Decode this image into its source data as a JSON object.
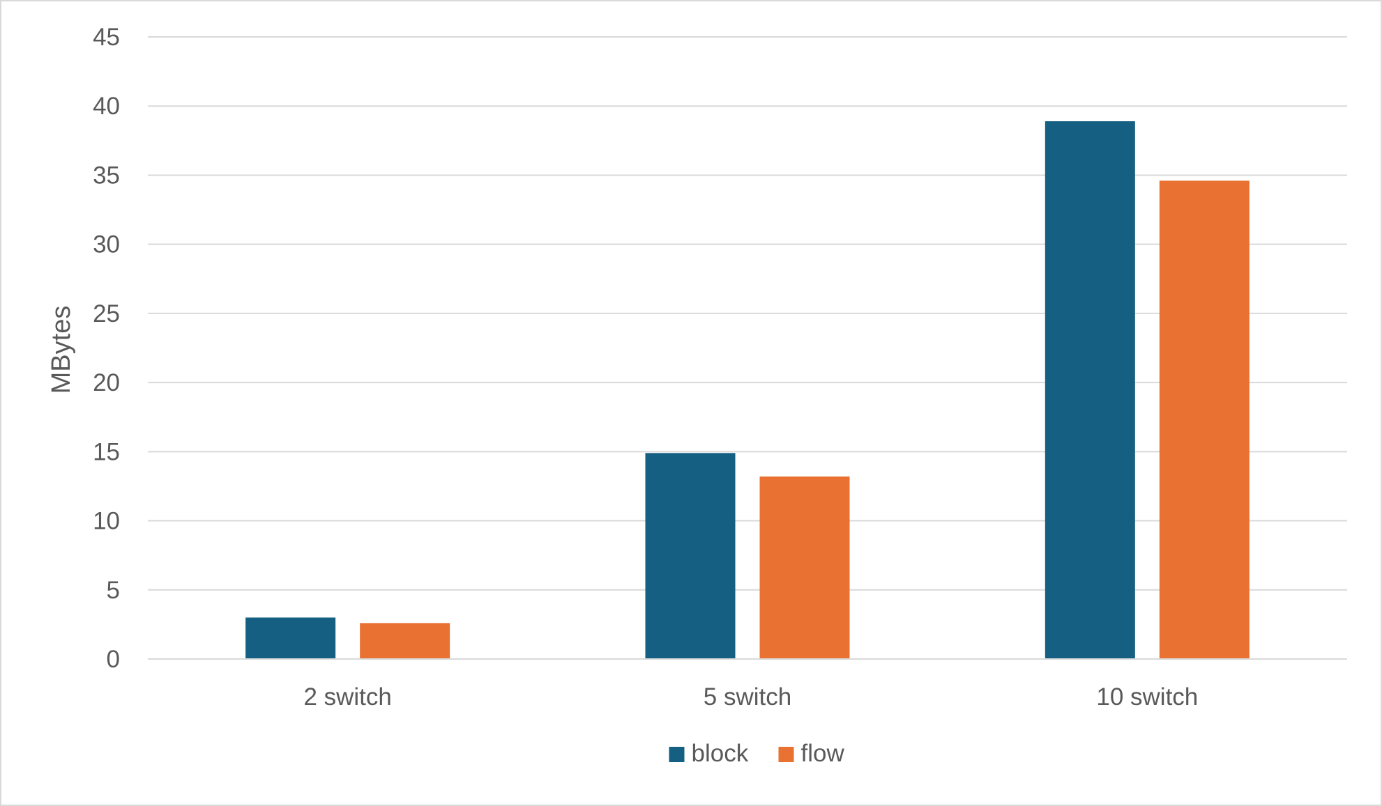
{
  "chart_data": {
    "type": "bar",
    "title": "",
    "xlabel": "",
    "ylabel": "MBytes",
    "categories": [
      "2 switch",
      "5 switch",
      "10 switch"
    ],
    "series": [
      {
        "name": "block",
        "color": "#156082",
        "values": [
          3.0,
          14.9,
          38.9
        ]
      },
      {
        "name": "flow",
        "color": "#E97132",
        "values": [
          2.6,
          13.2,
          34.6
        ]
      }
    ],
    "ylim": [
      0,
      45
    ],
    "yticks": [
      0,
      5,
      10,
      15,
      20,
      25,
      30,
      35,
      40,
      45
    ],
    "grid": true,
    "legend_position": "bottom",
    "colors": {
      "grid": "#d9d9d9",
      "text": "#595959"
    }
  }
}
